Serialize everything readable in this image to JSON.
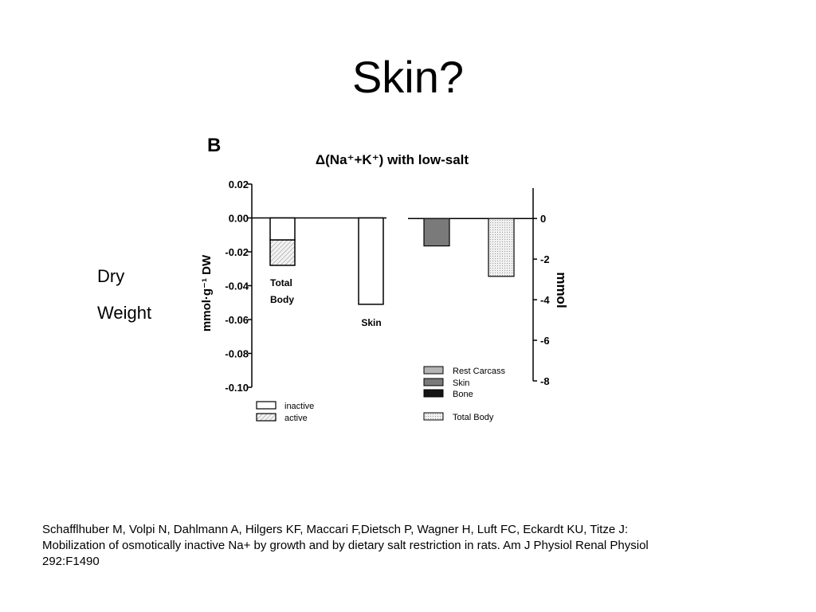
{
  "slide": {
    "title": "Skin?",
    "side_label_line1": "Dry",
    "side_label_line2": "Weight",
    "citation_line1": "Schafflhuber M, Volpi N, Dahlmann A, Hilgers KF, Maccari F,Dietsch P, Wagner H, Luft FC, Eckardt KU, Titze J:",
    "citation_line2": "Mobilization of osmotically inactive Na+ by growth and by dietary salt restriction in rats. Am J Physiol Renal Physiol",
    "citation_line3": "292:F1490"
  },
  "chart_data": [
    {
      "type": "bar",
      "panel_label": "B",
      "title": "Δ(Na⁺+K⁺) with low-salt",
      "ylabel": "mmol·g⁻¹ DW",
      "ylim": [
        -0.1,
        0.02
      ],
      "yticks": [
        "0.02",
        "0.00",
        "-0.02",
        "-0.04",
        "-0.06",
        "-0.08",
        "-0.10"
      ],
      "categories": [
        "Total Body",
        "Skin"
      ],
      "series": [
        {
          "name": "inactive",
          "values": [
            -0.013,
            -0.051
          ]
        },
        {
          "name": "active",
          "values": [
            -0.015,
            0.0
          ]
        }
      ],
      "legend": [
        "inactive",
        "active"
      ],
      "legend_position": "bottom-left",
      "colors": {
        "inactive": "#ffffff",
        "active": "#e6e6e6"
      }
    },
    {
      "type": "bar",
      "ylabel": "mmol",
      "ylim": [
        -8,
        1.5
      ],
      "yticks": [
        "0",
        "-2",
        "-4",
        "-6",
        "-8"
      ],
      "y_axis_side": "right",
      "categories": [
        "Skin",
        "Total Body"
      ],
      "values": [
        -1.35,
        -2.85
      ],
      "legend": [
        "Rest Carcass",
        "Skin",
        "Bone",
        "Total Body"
      ],
      "legend_position": "bottom",
      "colors": {
        "Rest Carcass": "#b4b4b4",
        "Skin": "#7a7a7a",
        "Bone": "#151515",
        "Total Body": "#e8e8e8"
      }
    }
  ]
}
